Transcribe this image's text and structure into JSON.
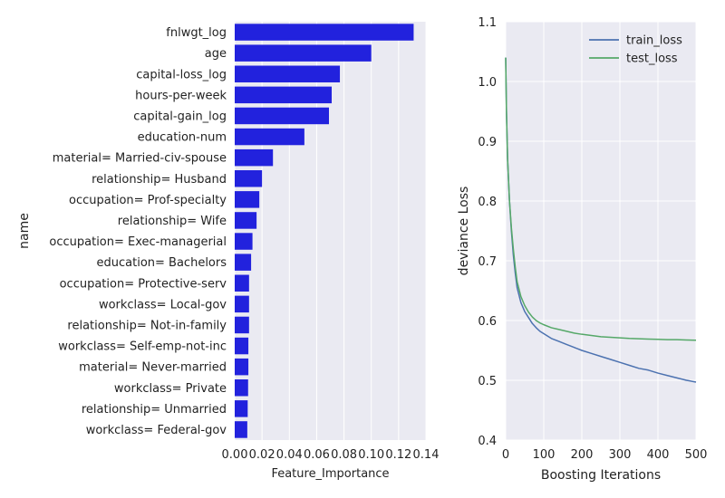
{
  "chart_data": [
    {
      "type": "bar",
      "orientation": "horizontal",
      "xlabel": "Feature_Importance",
      "ylabel": "name",
      "xlim": [
        0,
        0.14
      ],
      "xticks": [
        "0.00",
        "0.02",
        "0.04",
        "0.06",
        "0.08",
        "0.10",
        "0.12",
        "0.14"
      ],
      "grid": true,
      "bar_color": "#2222dd",
      "categories": [
        "fnlwgt_log",
        "age",
        "capital-loss_log",
        "hours-per-week",
        "capital-gain_log",
        "education-num",
        "material= Married-civ-spouse",
        "relationship= Husband",
        "occupation= Prof-specialty",
        "relationship= Wife",
        "occupation= Exec-managerial",
        "education= Bachelors",
        "occupation= Protective-serv",
        "workclass= Local-gov",
        "relationship= Not-in-family",
        "workclass= Self-emp-not-inc",
        "material= Never-married",
        "workclass= Private",
        "relationship= Unmarried",
        "workclass= Federal-gov"
      ],
      "values": [
        0.131,
        0.1,
        0.077,
        0.071,
        0.069,
        0.051,
        0.028,
        0.02,
        0.018,
        0.016,
        0.013,
        0.012,
        0.0105,
        0.0105,
        0.0105,
        0.01,
        0.01,
        0.0098,
        0.0095,
        0.0092
      ]
    },
    {
      "type": "line",
      "xlabel": "Boosting Iterations",
      "ylabel": "deviance Loss",
      "xlim": [
        0,
        500
      ],
      "ylim": [
        0.4,
        1.1
      ],
      "xticks": [
        "0",
        "100",
        "200",
        "300",
        "400",
        "500"
      ],
      "yticks": [
        "0.4",
        "0.5",
        "0.6",
        "0.7",
        "0.8",
        "0.9",
        "1.0",
        "1.1"
      ],
      "grid": true,
      "legend_position": "top-right",
      "series": [
        {
          "name": "train_loss",
          "color": "#4c72b0",
          "x": [
            0,
            2,
            5,
            10,
            15,
            20,
            25,
            30,
            40,
            50,
            60,
            70,
            80,
            90,
            100,
            120,
            140,
            160,
            180,
            200,
            225,
            250,
            275,
            300,
            325,
            350,
            375,
            400,
            425,
            450,
            475,
            500
          ],
          "y": [
            1.04,
            0.95,
            0.87,
            0.8,
            0.75,
            0.71,
            0.68,
            0.655,
            0.63,
            0.615,
            0.605,
            0.595,
            0.588,
            0.582,
            0.578,
            0.57,
            0.565,
            0.56,
            0.555,
            0.55,
            0.545,
            0.54,
            0.535,
            0.53,
            0.525,
            0.52,
            0.517,
            0.512,
            0.508,
            0.504,
            0.5,
            0.497
          ]
        },
        {
          "name": "test_loss",
          "color": "#55a868",
          "x": [
            0,
            2,
            5,
            10,
            15,
            20,
            25,
            30,
            40,
            50,
            60,
            70,
            80,
            90,
            100,
            120,
            140,
            160,
            180,
            200,
            225,
            250,
            275,
            300,
            325,
            350,
            375,
            400,
            425,
            450,
            475,
            500
          ],
          "y": [
            1.04,
            0.95,
            0.87,
            0.8,
            0.755,
            0.72,
            0.69,
            0.665,
            0.64,
            0.625,
            0.614,
            0.606,
            0.6,
            0.596,
            0.593,
            0.588,
            0.585,
            0.582,
            0.579,
            0.577,
            0.575,
            0.573,
            0.572,
            0.571,
            0.57,
            0.5695,
            0.569,
            0.5685,
            0.568,
            0.568,
            0.5675,
            0.567
          ]
        }
      ]
    }
  ]
}
